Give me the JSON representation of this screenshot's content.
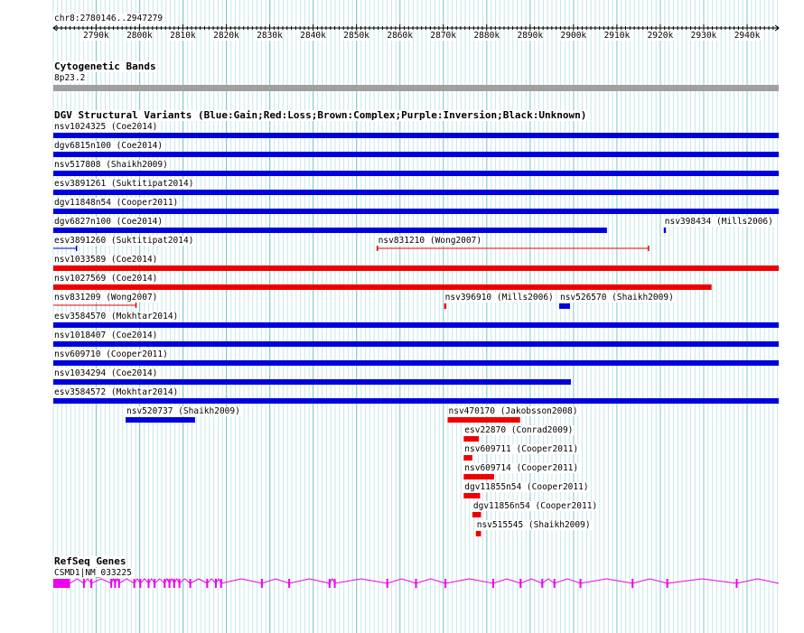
{
  "ruler": {
    "position_label": "chr8:2780146..2947279",
    "start": 2780146,
    "end": 2947279,
    "tick_labels": [
      "2790k",
      "2800k",
      "2810k",
      "2820k",
      "2830k",
      "2840k",
      "2850k",
      "2860k",
      "2870k",
      "2880k",
      "2890k",
      "2900k",
      "2910k",
      "2920k",
      "2930k",
      "2940k"
    ]
  },
  "cytobands": {
    "title": "Cytogenetic Bands",
    "band_label": "8p23.2",
    "color": "#a0a0a0"
  },
  "dgv": {
    "title": "DGV Structural Variants (Blue:Gain;Red:Loss;Brown:Complex;Purple:Inversion;Black:Unknown)",
    "colors": {
      "gain": "#0000dd",
      "loss": "#ee0000"
    },
    "features": [
      {
        "label": "nsv1024325 (Coe2014)",
        "start": 2780146,
        "end": 2947279,
        "type": "gain",
        "style": "bar",
        "row": 0
      },
      {
        "label": "dgv6815n100 (Coe2014)",
        "start": 2780146,
        "end": 2947279,
        "type": "gain",
        "style": "bar",
        "row": 1
      },
      {
        "label": "nsv517808 (Shaikh2009)",
        "start": 2780146,
        "end": 2947279,
        "type": "gain",
        "style": "bar",
        "row": 2
      },
      {
        "label": "esv3891261 (Suktitipat2014)",
        "start": 2780146,
        "end": 2947279,
        "type": "gain",
        "style": "bar",
        "row": 3
      },
      {
        "label": "dgv11848n54 (Cooper2011)",
        "start": 2780146,
        "end": 2947279,
        "type": "gain",
        "style": "bar",
        "row": 4
      },
      {
        "label": "dgv6827n100 (Coe2014)",
        "start": 2780146,
        "end": 2907700,
        "type": "gain",
        "style": "bar",
        "row": 5
      },
      {
        "label": "nsv398434 (Mills2006)",
        "start": 2920800,
        "end": 2921300,
        "type": "gain",
        "style": "bar",
        "row": 5
      },
      {
        "label": "esv3891260 (Suktitipat2014)",
        "start": 2780146,
        "end": 2785500,
        "type": "gain",
        "style": "line",
        "row": 6
      },
      {
        "label": "nsv831210 (Wong2007)",
        "start": 2854800,
        "end": 2917300,
        "type": "loss",
        "style": "line",
        "row": 6
      },
      {
        "label": "nsv1033589 (Coe2014)",
        "start": 2780146,
        "end": 2947279,
        "type": "loss",
        "style": "bar",
        "row": 7
      },
      {
        "label": "nsv1027569 (Coe2014)",
        "start": 2780146,
        "end": 2931800,
        "type": "loss",
        "style": "bar",
        "row": 8
      },
      {
        "label": "nsv831209 (Wong2007)",
        "start": 2780146,
        "end": 2799200,
        "type": "loss",
        "style": "line",
        "row": 9
      },
      {
        "label": "nsv396910 (Mills2006)",
        "start": 2870200,
        "end": 2870700,
        "type": "loss",
        "style": "bar",
        "row": 9
      },
      {
        "label": "nsv526570 (Shaikh2009)",
        "start": 2896700,
        "end": 2899200,
        "type": "gain",
        "style": "bar",
        "row": 9
      },
      {
        "label": "esv3584570 (Mokhtar2014)",
        "start": 2780146,
        "end": 2947279,
        "type": "gain",
        "style": "bar",
        "row": 10
      },
      {
        "label": "nsv1018407 (Coe2014)",
        "start": 2780146,
        "end": 2947279,
        "type": "gain",
        "style": "bar",
        "row": 11
      },
      {
        "label": "nsv609710 (Cooper2011)",
        "start": 2780146,
        "end": 2947279,
        "type": "gain",
        "style": "bar",
        "row": 12
      },
      {
        "label": "nsv1034294 (Coe2014)",
        "start": 2780146,
        "end": 2899400,
        "type": "gain",
        "style": "bar",
        "row": 13
      },
      {
        "label": "esv3584572 (Mokhtar2014)",
        "start": 2780146,
        "end": 2947279,
        "type": "gain",
        "style": "bar",
        "row": 14
      },
      {
        "label": "nsv520737 (Shaikh2009)",
        "start": 2796800,
        "end": 2812800,
        "type": "gain",
        "style": "bar",
        "row": 15
      },
      {
        "label": "nsv470170 (Jakobsson2008)",
        "start": 2871000,
        "end": 2887700,
        "type": "loss",
        "style": "bar",
        "row": 15
      },
      {
        "label": "esv22870 (Conrad2009)",
        "start": 2874700,
        "end": 2878200,
        "type": "loss",
        "style": "bar",
        "row": 16
      },
      {
        "label": "nsv609711 (Cooper2011)",
        "start": 2874700,
        "end": 2876700,
        "type": "loss",
        "style": "bar",
        "row": 17
      },
      {
        "label": "nsv609714 (Cooper2011)",
        "start": 2874700,
        "end": 2881700,
        "type": "loss",
        "style": "bar",
        "row": 18
      },
      {
        "label": "dgv11855n54 (Cooper2011)",
        "start": 2874700,
        "end": 2878500,
        "type": "loss",
        "style": "bar",
        "row": 19
      },
      {
        "label": "dgv11856n54 (Cooper2011)",
        "start": 2876700,
        "end": 2878700,
        "type": "loss",
        "style": "bar",
        "row": 20
      },
      {
        "label": "nsv515545 (Shaikh2009)",
        "start": 2877500,
        "end": 2878700,
        "type": "loss",
        "style": "bar",
        "row": 21
      }
    ]
  },
  "refseq": {
    "title": "RefSeq Genes",
    "gene_label": "CSMD1|NM_033225",
    "color": "#ee00ee",
    "start": 2780146,
    "end": 2947279,
    "utr": [
      2780146,
      2784000
    ],
    "exons": [
      2787200,
      2788900,
      2793500,
      2794400,
      2795300,
      2798800,
      2800200,
      2802100,
      2803500,
      2805800,
      2806900,
      2808000,
      2809200,
      2811700,
      2815600,
      2817600,
      2818800,
      2828200,
      2834500,
      2843800,
      2845000,
      2857100,
      2863700,
      2870500,
      2881500,
      2887800,
      2892800,
      2895600,
      2901600,
      2913600,
      2921600,
      2937600
    ]
  }
}
